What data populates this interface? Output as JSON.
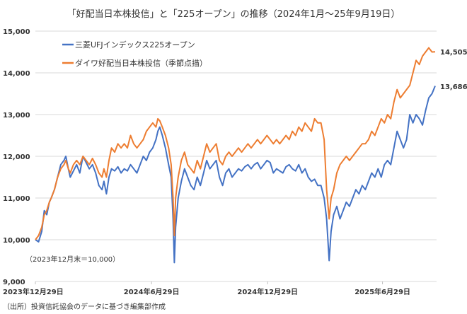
{
  "chart_data": {
    "type": "line",
    "title": "「好配当日本株投信」と「225オープン」の推移（2024年1月～25年9月19日）",
    "xlabel": "",
    "ylabel": "",
    "ylim": [
      9000,
      15000
    ],
    "yticks": [
      9000,
      10000,
      11000,
      12000,
      13000,
      14000,
      15000
    ],
    "ytick_labels": [
      "9,000",
      "10,000",
      "11,000",
      "12,000",
      "13,000",
      "14,000",
      "15,000"
    ],
    "xlim_days": [
      0,
      630
    ],
    "xticks_days": [
      0,
      183,
      366,
      547
    ],
    "xtick_labels": [
      "2023年12月29日",
      "2024年6月29日",
      "2024年12月29日",
      "2025年6月29日"
    ],
    "x_unit": "days since 2023-12-29",
    "grid": true,
    "legend_position": "top-left",
    "note": "（2023年12月末＝10,000）",
    "source": "（出所）投資信託協会のデータに基づき編集部作成",
    "series": [
      {
        "name": "三菱UFJインデックス225オープン",
        "color": "#4472c4",
        "end_label": "13,686",
        "x": [
          0,
          5,
          10,
          14,
          18,
          22,
          25,
          30,
          35,
          40,
          45,
          48,
          52,
          55,
          60,
          65,
          70,
          75,
          80,
          85,
          90,
          95,
          100,
          105,
          108,
          112,
          116,
          120,
          125,
          130,
          135,
          140,
          145,
          150,
          155,
          160,
          165,
          170,
          175,
          180,
          185,
          190,
          193,
          196,
          200,
          205,
          210,
          214,
          217,
          219,
          221,
          225,
          230,
          235,
          240,
          245,
          250,
          255,
          260,
          265,
          270,
          275,
          280,
          285,
          290,
          295,
          300,
          305,
          310,
          315,
          320,
          325,
          330,
          335,
          340,
          345,
          350,
          355,
          360,
          365,
          370,
          375,
          380,
          385,
          390,
          395,
          400,
          405,
          410,
          415,
          420,
          425,
          430,
          435,
          440,
          445,
          450,
          455,
          459,
          463,
          466,
          470,
          475,
          480,
          485,
          490,
          495,
          500,
          505,
          510,
          515,
          520,
          525,
          530,
          535,
          540,
          545,
          550,
          555,
          560,
          565,
          570,
          575,
          580,
          585,
          590,
          595,
          600,
          605,
          610,
          615,
          620,
          625,
          630
        ],
        "values": [
          10000,
          9950,
          10200,
          10700,
          10600,
          10900,
          11000,
          11200,
          11500,
          11800,
          11900,
          12000,
          11700,
          11500,
          11650,
          11800,
          11600,
          12000,
          11850,
          11700,
          11800,
          11600,
          11300,
          11200,
          11400,
          11100,
          11500,
          11700,
          11650,
          11750,
          11600,
          11700,
          11650,
          11800,
          11700,
          11600,
          11800,
          12000,
          11900,
          12100,
          12200,
          12400,
          12600,
          12700,
          12500,
          12200,
          11800,
          11500,
          10500,
          9450,
          10300,
          11000,
          11400,
          11700,
          11500,
          11300,
          11200,
          11500,
          11300,
          11600,
          11900,
          11700,
          11800,
          11900,
          11500,
          11300,
          11600,
          11700,
          11500,
          11600,
          11700,
          11650,
          11750,
          11800,
          11700,
          11800,
          11850,
          11700,
          11800,
          11900,
          11850,
          11600,
          11700,
          11650,
          11600,
          11750,
          11800,
          11700,
          11650,
          11800,
          11600,
          11700,
          11500,
          11400,
          11450,
          11300,
          11300,
          11000,
          10500,
          9500,
          10200,
          10600,
          10800,
          10500,
          10700,
          10900,
          10800,
          11000,
          11200,
          11100,
          11300,
          11200,
          11400,
          11600,
          11500,
          11700,
          11500,
          11800,
          11900,
          11800,
          12200,
          12600,
          12400,
          12200,
          12400,
          13000,
          12800,
          13000,
          12900,
          12750,
          13100,
          13400,
          13500,
          13686
        ]
      },
      {
        "name": "ダイワ好配当日本株投信（季節点描）",
        "color": "#ed7d31",
        "end_label": "14,505",
        "x": [
          0,
          5,
          10,
          14,
          18,
          22,
          25,
          30,
          35,
          40,
          45,
          48,
          52,
          55,
          60,
          65,
          70,
          75,
          80,
          85,
          90,
          95,
          100,
          105,
          108,
          112,
          116,
          120,
          125,
          130,
          135,
          140,
          145,
          150,
          155,
          160,
          165,
          170,
          175,
          180,
          185,
          190,
          193,
          196,
          200,
          205,
          210,
          214,
          217,
          219,
          221,
          225,
          230,
          235,
          240,
          245,
          250,
          255,
          260,
          265,
          270,
          275,
          280,
          285,
          290,
          295,
          300,
          305,
          310,
          315,
          320,
          325,
          330,
          335,
          340,
          345,
          350,
          355,
          360,
          365,
          370,
          375,
          380,
          385,
          390,
          395,
          400,
          405,
          410,
          415,
          420,
          425,
          430,
          435,
          440,
          445,
          450,
          455,
          459,
          463,
          466,
          470,
          475,
          480,
          485,
          490,
          495,
          500,
          505,
          510,
          515,
          520,
          525,
          530,
          535,
          540,
          545,
          550,
          555,
          560,
          565,
          570,
          575,
          580,
          585,
          590,
          595,
          600,
          605,
          610,
          615,
          620,
          625,
          630
        ],
        "values": [
          10000,
          10100,
          10300,
          10600,
          10700,
          10900,
          11000,
          11200,
          11500,
          11700,
          11800,
          11900,
          11700,
          11600,
          11800,
          11900,
          11800,
          12000,
          11900,
          11800,
          11950,
          11800,
          11600,
          11500,
          11700,
          11500,
          11900,
          12200,
          12100,
          12300,
          12200,
          12300,
          12200,
          12500,
          12300,
          12200,
          12300,
          12400,
          12600,
          12700,
          12800,
          12700,
          12900,
          12850,
          12700,
          12500,
          12200,
          11800,
          11000,
          10100,
          11000,
          11500,
          11900,
          12100,
          11800,
          11700,
          11600,
          11900,
          11700,
          12000,
          12300,
          12100,
          12200,
          12300,
          11900,
          11800,
          12000,
          12100,
          12000,
          12100,
          12200,
          12100,
          12200,
          12300,
          12200,
          12300,
          12400,
          12300,
          12400,
          12500,
          12400,
          12300,
          12400,
          12300,
          12400,
          12500,
          12400,
          12600,
          12500,
          12700,
          12600,
          12800,
          12700,
          12600,
          12900,
          12800,
          12800,
          12400,
          11200,
          10500,
          11000,
          11200,
          11600,
          11800,
          11900,
          12000,
          11900,
          12000,
          12100,
          12200,
          12300,
          12300,
          12400,
          12600,
          12500,
          12700,
          12900,
          12800,
          13000,
          12900,
          13300,
          13600,
          13400,
          13500,
          13600,
          13700,
          14000,
          14300,
          14200,
          14400,
          14500,
          14600,
          14500,
          14505
        ]
      }
    ]
  }
}
